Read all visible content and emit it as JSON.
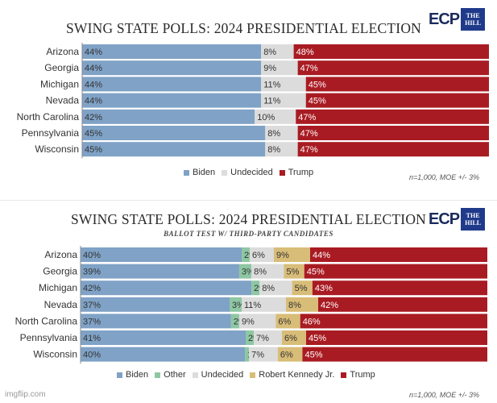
{
  "colors": {
    "Biden": "#7fa2c6",
    "Other": "#8ec7a3",
    "Undecided": "#dcdcdc",
    "Robert Kennedy Jr.": "#d8bd78",
    "Trump": "#a91b22"
  },
  "logo": {
    "ecp": "ECP",
    "hill_line1": "THE",
    "hill_line2": "HILL"
  },
  "watermark": "imgflip.com",
  "chart_data": [
    {
      "type": "bar",
      "title": "SWING STATE POLLS: 2024 PRESIDENTIAL ELECTION",
      "subtitle": "",
      "categories": [
        "Arizona",
        "Georgia",
        "Michigan",
        "Nevada",
        "North Carolina",
        "Pennsylvania",
        "Wisconsin"
      ],
      "series": [
        {
          "name": "Biden",
          "values": [
            44,
            44,
            44,
            44,
            42,
            45,
            45
          ]
        },
        {
          "name": "Undecided",
          "values": [
            8,
            9,
            11,
            11,
            10,
            8,
            8
          ]
        },
        {
          "name": "Trump",
          "values": [
            48,
            47,
            45,
            45,
            47,
            47,
            47
          ]
        }
      ],
      "labels": [
        [
          "44%",
          "8%",
          "48%"
        ],
        [
          "44%",
          "9%",
          "47%"
        ],
        [
          "44%",
          "11%",
          "45%"
        ],
        [
          "44%",
          "11%",
          "45%"
        ],
        [
          "42%",
          "10%",
          "47%"
        ],
        [
          "45%",
          "8%",
          "47%"
        ],
        [
          "45%",
          "8%",
          "47%"
        ]
      ],
      "stacked": true,
      "orientation": "horizontal",
      "legend": [
        "Biden",
        "Undecided",
        "Trump"
      ],
      "legend_position": "bottom",
      "note": "n=1,000, MOE +/- 3%"
    },
    {
      "type": "bar",
      "title": "SWING STATE POLLS: 2024 PRESIDENTIAL ELECTION",
      "subtitle": "BALLOT TEST W/ THIRD-PARTY CANDIDATES",
      "categories": [
        "Arizona",
        "Georgia",
        "Michigan",
        "Nevada",
        "North Carolina",
        "Pennsylvania",
        "Wisconsin"
      ],
      "series": [
        {
          "name": "Biden",
          "values": [
            40,
            39,
            42,
            37,
            37,
            41,
            40
          ]
        },
        {
          "name": "Other",
          "values": [
            2,
            3,
            2,
            3,
            2,
            2,
            1
          ]
        },
        {
          "name": "Undecided",
          "values": [
            6,
            8,
            8,
            11,
            9,
            7,
            7
          ]
        },
        {
          "name": "Robert Kennedy Jr.",
          "values": [
            9,
            5,
            5,
            8,
            6,
            6,
            6
          ]
        },
        {
          "name": "Trump",
          "values": [
            44,
            45,
            43,
            42,
            46,
            45,
            45
          ]
        }
      ],
      "labels": [
        [
          "40%",
          "2%",
          "6%",
          "9%",
          "44%"
        ],
        [
          "39%",
          "3%",
          "8%",
          "5%",
          "45%"
        ],
        [
          "42%",
          "2%",
          "8%",
          "5%",
          "43%"
        ],
        [
          "37%",
          "3%",
          "11%",
          "8%",
          "42%"
        ],
        [
          "37%",
          "2%",
          "9%",
          "6%",
          "46%"
        ],
        [
          "41%",
          "2%",
          "7%",
          "6%",
          "45%"
        ],
        [
          "40%",
          "1%",
          "7%",
          "6%",
          "45%"
        ]
      ],
      "stacked": true,
      "orientation": "horizontal",
      "legend": [
        "Biden",
        "Other",
        "Undecided",
        "Robert Kennedy Jr.",
        "Trump"
      ],
      "legend_position": "bottom",
      "note": "n=1,000, MOE +/- 3%"
    }
  ]
}
